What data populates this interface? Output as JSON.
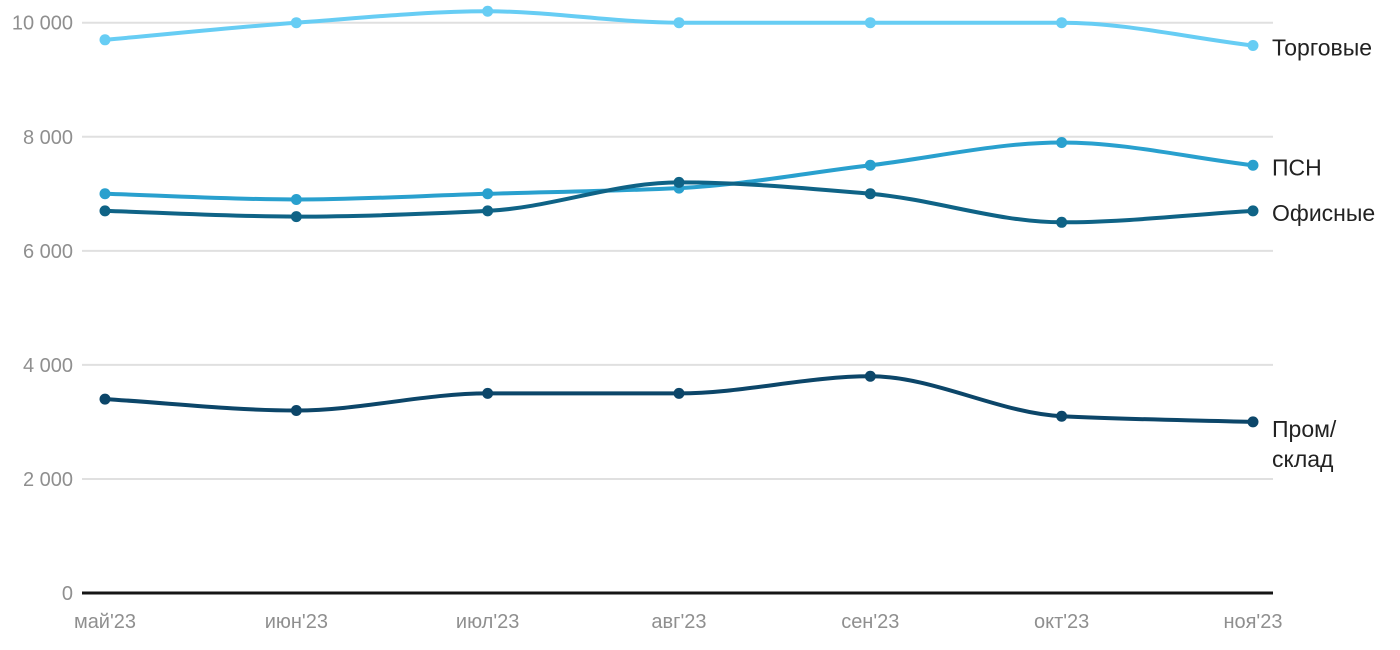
{
  "chart_data": {
    "type": "line",
    "title": "",
    "xlabel": "",
    "ylabel": "",
    "categories": [
      "май'23",
      "июн'23",
      "июл'23",
      "авг'23",
      "сен'23",
      "окт'23",
      "ноя'23"
    ],
    "series": [
      {
        "name": "Торговые",
        "label_lines": [
          "Торговые"
        ],
        "color": "#67CDF4",
        "values": [
          9700,
          10000,
          10200,
          10000,
          10000,
          10000,
          9600
        ]
      },
      {
        "name": "ПСН",
        "label_lines": [
          "ПСН"
        ],
        "color": "#29A0CE",
        "values": [
          7000,
          6900,
          7000,
          7100,
          7500,
          7900,
          7500
        ]
      },
      {
        "name": "Офисные",
        "label_lines": [
          "Офисные"
        ],
        "color": "#0F6386",
        "values": [
          6700,
          6600,
          6700,
          7200,
          7000,
          6500,
          6700
        ]
      },
      {
        "name": "Пром/склад",
        "label_lines": [
          "Пром/",
          "склад"
        ],
        "color": "#0C4669",
        "values": [
          3400,
          3200,
          3500,
          3500,
          3800,
          3100,
          3000
        ]
      }
    ],
    "ylim": [
      0,
      10400
    ],
    "y_ticks": [
      0,
      2000,
      4000,
      6000,
      8000,
      10000
    ],
    "y_tick_labels": [
      "0",
      "2 000",
      "4 000",
      "6 000",
      "8 000",
      "10 000"
    ],
    "grid": "horizontal",
    "legend_position": "right-end-labels"
  },
  "style": {
    "background": "#FFFFFF",
    "axis_color": "#151515",
    "grid_color": "#E0E0E0",
    "tick_label_color": "#8F8F8F",
    "series_label_color": "#222222"
  }
}
